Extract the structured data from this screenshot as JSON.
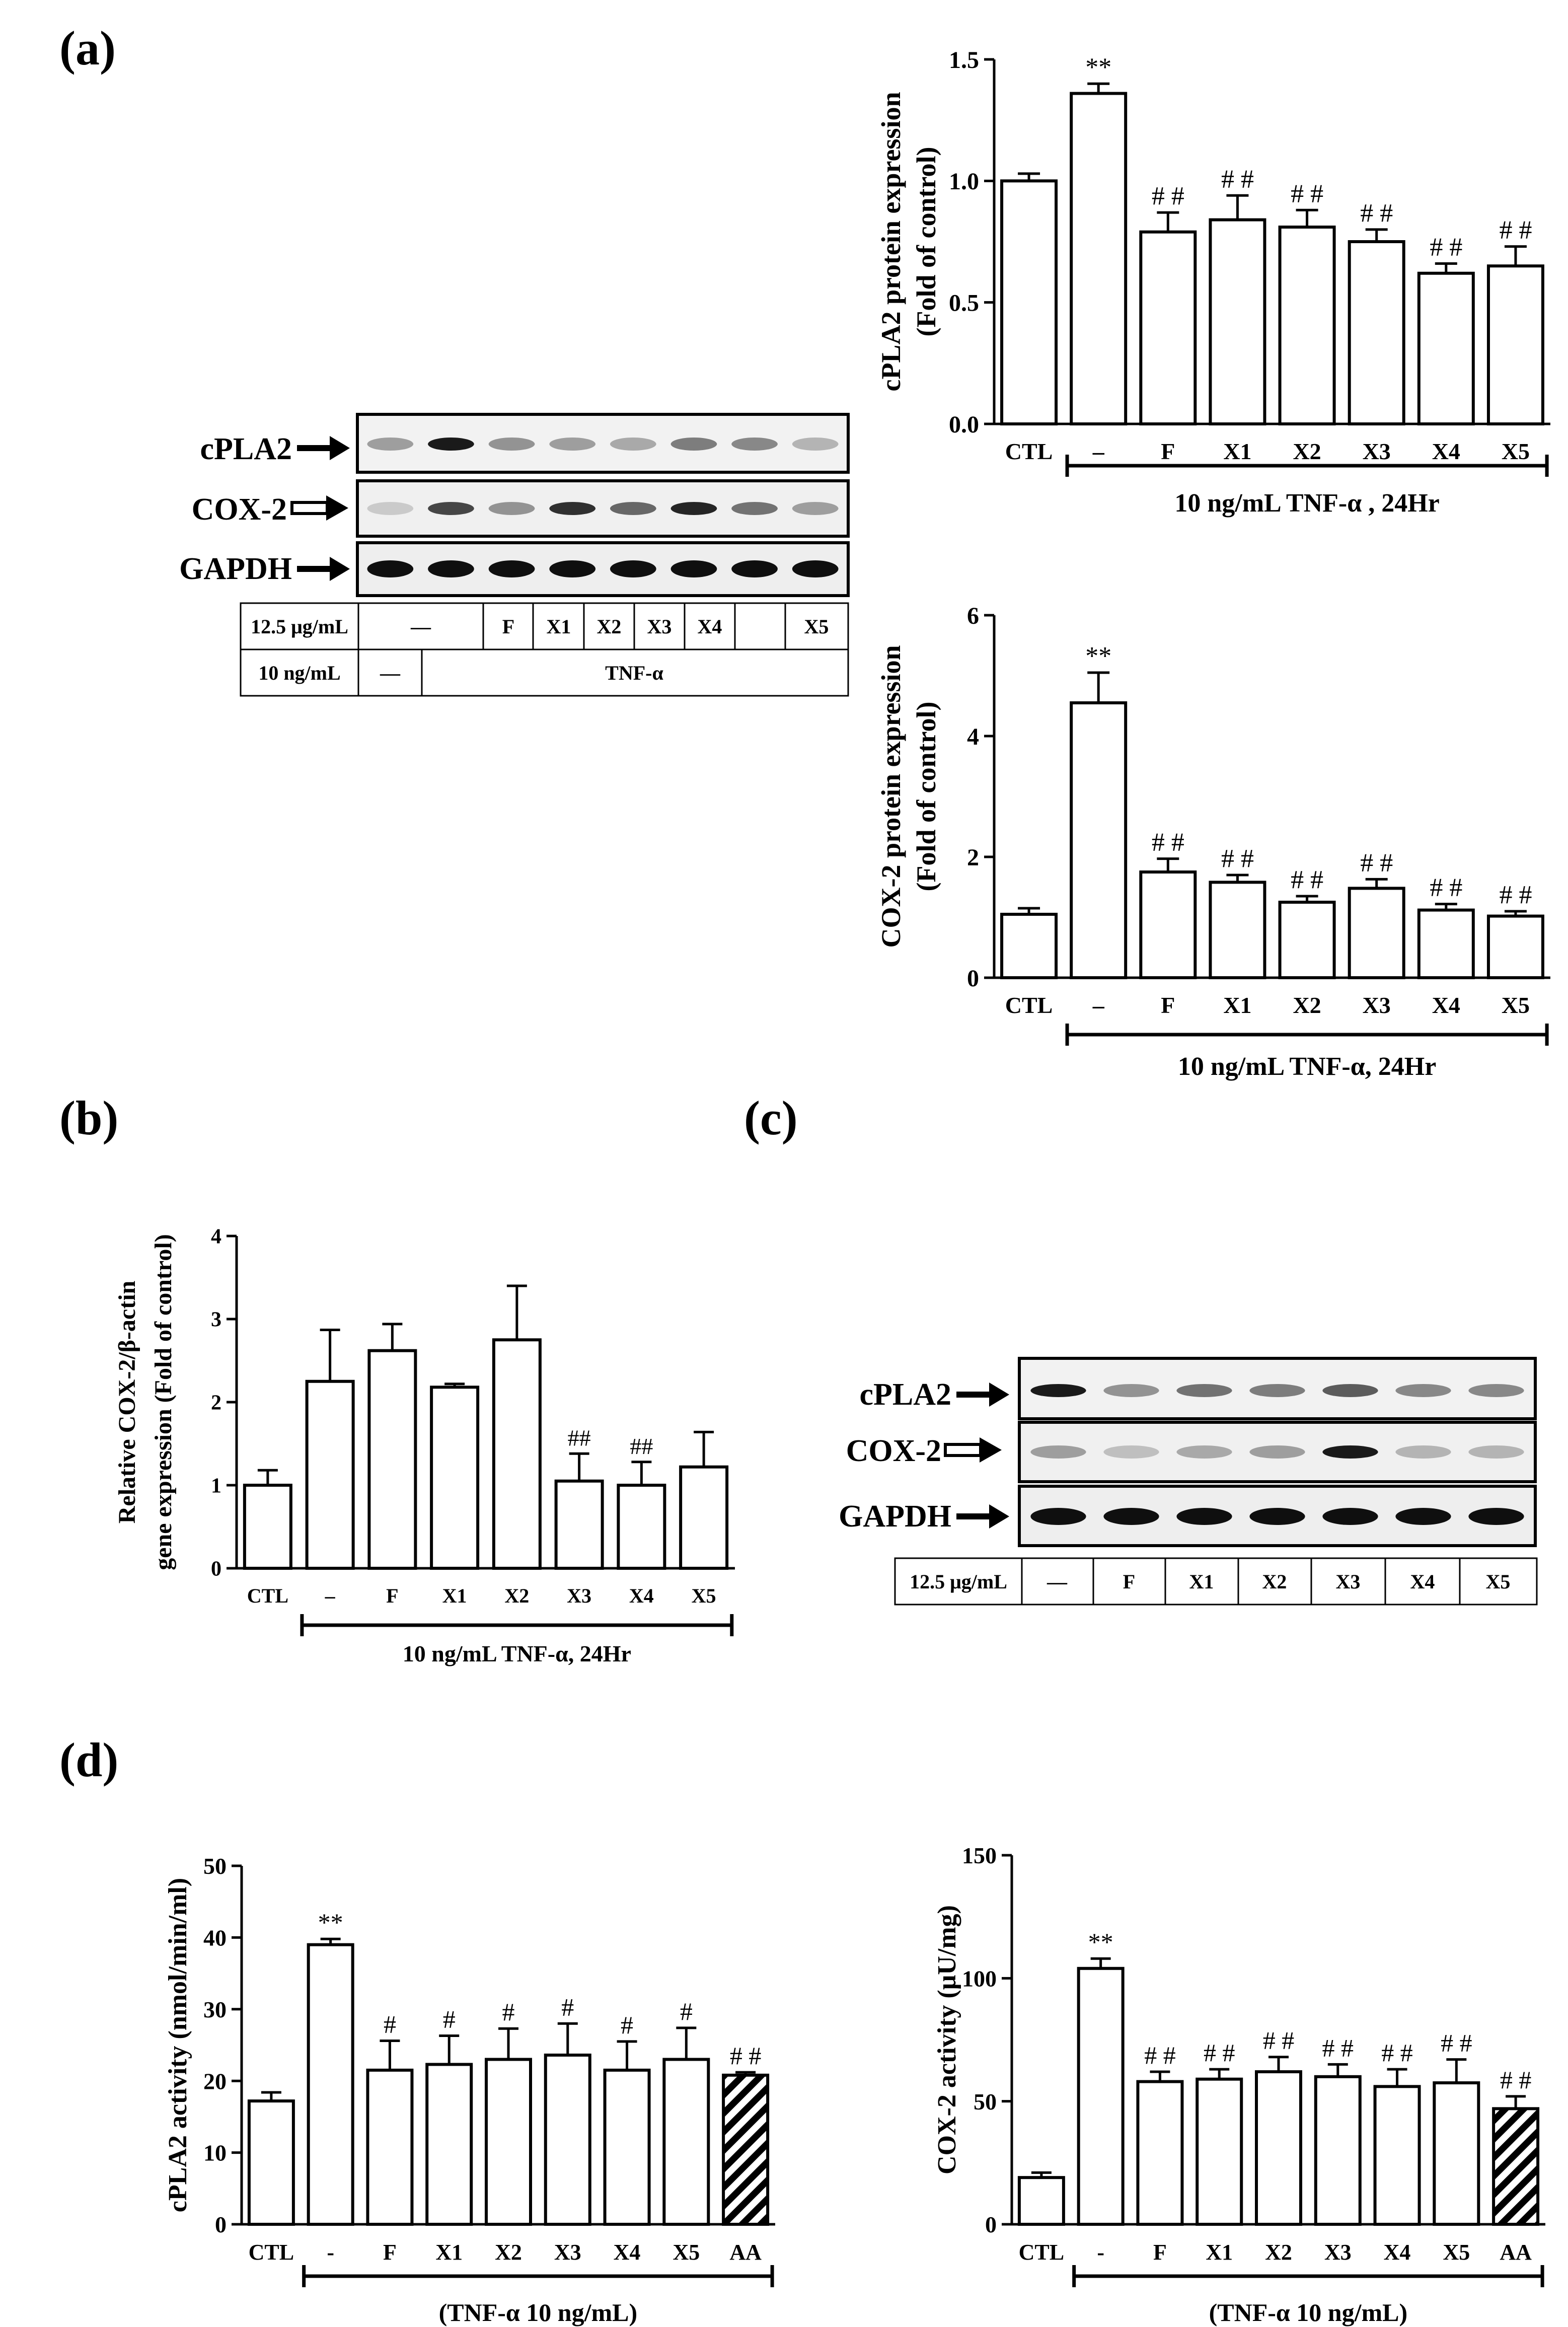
{
  "figure": {
    "panel_labels": {
      "a": "(a)",
      "b": "(b)",
      "c": "(c)",
      "d": "(d)"
    },
    "line_color": "#000000",
    "hatch_color": "#000000"
  },
  "blot_a": {
    "rows": [
      {
        "label": "cPLA2",
        "arrow": "filled",
        "intensities": [
          0.35,
          0.95,
          0.4,
          0.35,
          0.3,
          0.5,
          0.45,
          0.25
        ]
      },
      {
        "label": "COX-2",
        "arrow": "hollow",
        "intensities": [
          0.15,
          0.75,
          0.4,
          0.85,
          0.6,
          0.9,
          0.55,
          0.35
        ]
      },
      {
        "label": "GAPDH",
        "arrow": "filled",
        "intensities": [
          1,
          1,
          1,
          1,
          1,
          1,
          1,
          1
        ]
      }
    ],
    "conc_label": "12.5 μg/mL",
    "treatment_row": [
      "—",
      "F",
      "X1",
      "X2",
      "X3",
      "X4",
      "X5"
    ],
    "tnf_conc_label": "10 ng/mL",
    "tnf_none": "—",
    "tnf_label": "TNF-α"
  },
  "blot_c": {
    "rows": [
      {
        "label": "cPLA2",
        "arrow": "filled",
        "intensities": [
          0.95,
          0.4,
          0.55,
          0.5,
          0.65,
          0.45,
          0.45
        ]
      },
      {
        "label": "COX-2",
        "arrow": "hollow",
        "intensities": [
          0.35,
          0.2,
          0.3,
          0.35,
          0.95,
          0.25,
          0.25
        ]
      },
      {
        "label": "GAPDH",
        "arrow": "filled",
        "intensities": [
          1,
          1,
          1,
          1,
          1,
          1,
          1
        ]
      }
    ],
    "conc_label": "12.5 μg/mL",
    "treatment_row": [
      "—",
      "F",
      "X1",
      "X2",
      "X3",
      "X4",
      "X5"
    ]
  },
  "chart_data": [
    {
      "id": "a1",
      "type": "bar",
      "categories": [
        "CTL",
        "–",
        "F",
        "X1",
        "X2",
        "X3",
        "X4",
        "X5"
      ],
      "values": [
        1.0,
        1.36,
        0.79,
        0.84,
        0.81,
        0.75,
        0.62,
        0.65
      ],
      "errors": [
        0.03,
        0.04,
        0.08,
        0.1,
        0.07,
        0.05,
        0.04,
        0.08
      ],
      "annotations": [
        "",
        "**",
        "# #",
        "# #",
        "# #",
        "# #",
        "# #",
        "# #"
      ],
      "ylabel": "cPLA2 protein expression",
      "ylabel2": "(Fold of control)",
      "ylim": [
        0,
        1.5
      ],
      "yticks": [
        "0.0",
        "0.5",
        "1.0",
        "1.5"
      ],
      "treatment_label": "10 ng/mL TNF-α , 24Hr",
      "hatched_index": -1
    },
    {
      "id": "a2",
      "type": "bar",
      "categories": [
        "CTL",
        "–",
        "F",
        "X1",
        "X2",
        "X3",
        "X4",
        "X5"
      ],
      "values": [
        1.05,
        4.55,
        1.75,
        1.58,
        1.25,
        1.48,
        1.12,
        1.02
      ],
      "errors": [
        0.1,
        0.5,
        0.22,
        0.12,
        0.1,
        0.15,
        0.1,
        0.08
      ],
      "annotations": [
        "",
        "**",
        "# #",
        "# #",
        "# #",
        "# #",
        "# #",
        "# #"
      ],
      "ylabel": "COX-2 protein expression",
      "ylabel2": "(Fold of control)",
      "ylim": [
        0,
        6
      ],
      "yticks": [
        "0",
        "2",
        "4",
        "6"
      ],
      "treatment_label": "10 ng/mL TNF-α, 24Hr",
      "hatched_index": -1
    },
    {
      "id": "b",
      "type": "bar",
      "categories": [
        "CTL",
        "–",
        "F",
        "X1",
        "X2",
        "X3",
        "X4",
        "X5"
      ],
      "values": [
        1.0,
        2.25,
        2.62,
        2.18,
        2.75,
        1.05,
        1.0,
        1.22
      ],
      "errors": [
        0.18,
        0.62,
        0.32,
        0.04,
        0.65,
        0.33,
        0.28,
        0.42
      ],
      "annotations": [
        "",
        "",
        "",
        "",
        "",
        "##",
        "##",
        ""
      ],
      "ylabel": "Relative COX-2/β-actin",
      "ylabel2": "gene expression (Fold of control)",
      "ylim": [
        0,
        4
      ],
      "yticks": [
        "0",
        "1",
        "2",
        "3",
        "4"
      ],
      "treatment_label": "10 ng/mL TNF-α, 24Hr",
      "hatched_index": -1
    },
    {
      "id": "d1",
      "type": "bar",
      "categories": [
        "CTL",
        "-",
        "F",
        "X1",
        "X2",
        "X3",
        "X4",
        "X5",
        "AA"
      ],
      "values": [
        17.2,
        39.0,
        21.5,
        22.3,
        23.0,
        23.6,
        21.5,
        23.0,
        20.8
      ],
      "errors": [
        1.2,
        0.8,
        4.1,
        4.0,
        4.3,
        4.4,
        4.0,
        4.4,
        0.4
      ],
      "annotations": [
        "",
        "**",
        "#",
        "#",
        "#",
        "#",
        "#",
        "#",
        "# #"
      ],
      "ylabel": "cPLA2 activity (nmol/min/ml)",
      "ylabel2": "",
      "ylim": [
        0,
        50
      ],
      "yticks": [
        "0",
        "10",
        "20",
        "30",
        "40",
        "50"
      ],
      "treatment_label": "(TNF-α 10 ng/mL)",
      "hatched_index": 8
    },
    {
      "id": "d2",
      "type": "bar",
      "categories": [
        "CTL",
        "-",
        "F",
        "X1",
        "X2",
        "X3",
        "X4",
        "X5",
        "AA"
      ],
      "values": [
        19,
        104,
        58,
        59,
        62,
        60,
        56,
        57.5,
        47
      ],
      "errors": [
        2,
        4,
        4,
        4,
        6,
        5,
        7,
        9.5,
        5
      ],
      "annotations": [
        "",
        "**",
        "# #",
        "# #",
        "# #",
        "# #",
        "# #",
        "# #",
        "# #"
      ],
      "ylabel": "COX-2 activity (μU/mg)",
      "ylabel2": "",
      "ylim": [
        0,
        150
      ],
      "yticks": [
        "0",
        "50",
        "100",
        "150"
      ],
      "treatment_label": "(TNF-α 10 ng/mL)",
      "hatched_index": 8
    }
  ]
}
